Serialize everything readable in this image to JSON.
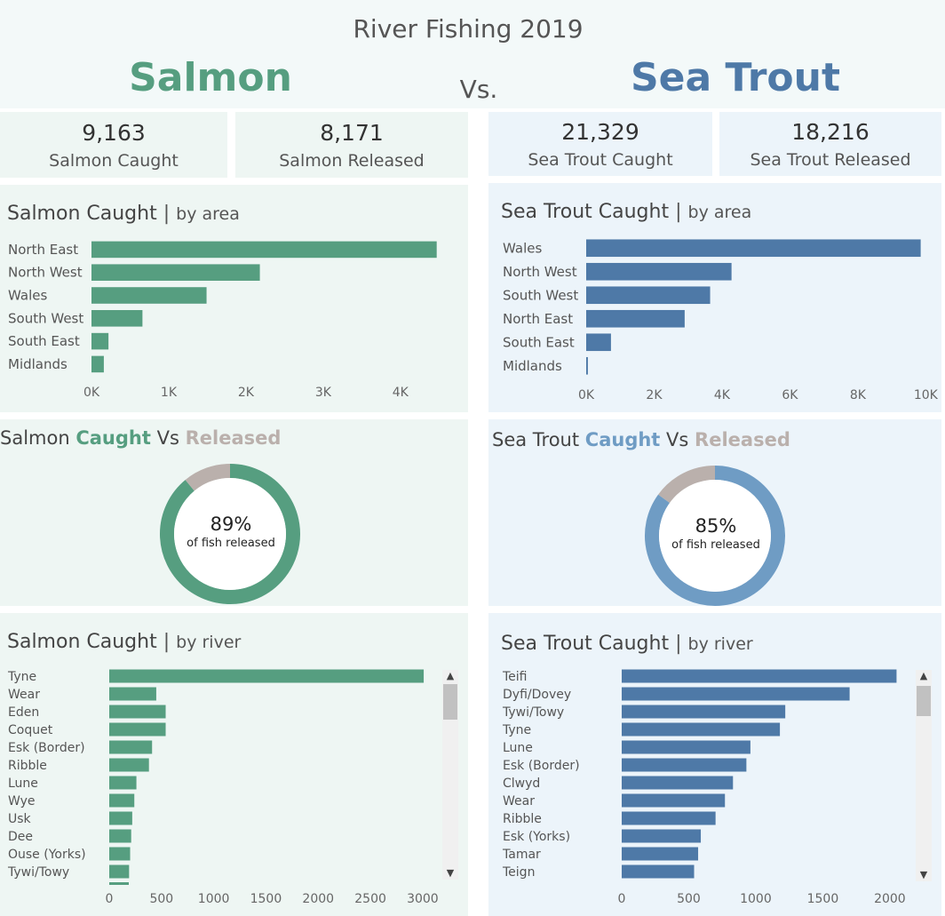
{
  "header": {
    "title": "River Fishing 2019",
    "left_name": "Salmon",
    "vs": "Vs.",
    "right_name": "Sea Trout"
  },
  "colors": {
    "salmon": "#569e80",
    "trout": "#4e79a7",
    "trout_light": "#6f9cc4",
    "released": "#bab0ac"
  },
  "kpis": {
    "salmon_caught": {
      "value": "9,163",
      "label": "Salmon Caught"
    },
    "salmon_released": {
      "value": "8,171",
      "label": "Salmon Released"
    },
    "trout_caught": {
      "value": "21,329",
      "label": "Sea Trout Caught"
    },
    "trout_released": {
      "value": "18,216",
      "label": "Sea Trout Released"
    }
  },
  "salmon_area": {
    "title": "Salmon Caught",
    "sep": "|",
    "subtitle": "by area"
  },
  "trout_area": {
    "title": "Sea Trout Caught",
    "sep": "|",
    "subtitle": "by area"
  },
  "salmon_donut": {
    "title_a": "Salmon",
    "title_b": "Caught",
    "title_c": "Vs",
    "title_d": "Released",
    "percent": "89%",
    "caption": "of fish released"
  },
  "trout_donut": {
    "title_a": "Sea Trout",
    "title_b": "Caught",
    "title_c": "Vs",
    "title_d": "Released",
    "percent": "85%",
    "caption": "of fish released"
  },
  "salmon_river": {
    "title": "Salmon Caught",
    "sep": "|",
    "subtitle": "by river"
  },
  "trout_river": {
    "title": "Sea Trout Caught",
    "sep": "|",
    "subtitle": "by river"
  },
  "chart_data": [
    {
      "id": "salmon-area",
      "type": "bar",
      "orientation": "horizontal",
      "categories": [
        "North East",
        "North West",
        "Wales",
        "South West",
        "South East",
        "Midlands"
      ],
      "values": [
        4470,
        2180,
        1490,
        660,
        220,
        160
      ],
      "xlim": [
        0,
        4600
      ],
      "ticks": [
        0,
        1000,
        2000,
        3000,
        4000
      ],
      "tick_labels": [
        "0K",
        "1K",
        "2K",
        "3K",
        "4K"
      ],
      "color": "#569e80"
    },
    {
      "id": "trout-area",
      "type": "bar",
      "orientation": "horizontal",
      "categories": [
        "Wales",
        "North West",
        "South West",
        "North East",
        "South East",
        "Midlands"
      ],
      "values": [
        9850,
        4280,
        3650,
        2900,
        730,
        50
      ],
      "xlim": [
        0,
        10200
      ],
      "ticks": [
        0,
        2000,
        4000,
        6000,
        8000,
        10000
      ],
      "tick_labels": [
        "0K",
        "2K",
        "4K",
        "6K",
        "8K",
        "10K"
      ],
      "color": "#4e79a7"
    },
    {
      "id": "salmon-donut",
      "type": "pie",
      "categories": [
        "Released",
        "Not released"
      ],
      "values": [
        89,
        11
      ],
      "colors": [
        "#569e80",
        "#bab0ac"
      ]
    },
    {
      "id": "trout-donut",
      "type": "pie",
      "categories": [
        "Released",
        "Not released"
      ],
      "values": [
        85,
        15
      ],
      "colors": [
        "#6f9cc4",
        "#bab0ac"
      ]
    },
    {
      "id": "salmon-river",
      "type": "bar",
      "orientation": "horizontal",
      "categories": [
        "Tyne",
        "Wear",
        "Eden",
        "Coquet",
        "Esk (Border)",
        "Ribble",
        "Lune",
        "Wye",
        "Usk",
        "Dee",
        "Ouse (Yorks)",
        "Tywi/Towy"
      ],
      "values": [
        3010,
        450,
        540,
        540,
        410,
        380,
        260,
        240,
        220,
        210,
        200,
        190
      ],
      "xlim": [
        0,
        3120
      ],
      "ticks": [
        0,
        500,
        1000,
        1500,
        2000,
        2500,
        3000
      ],
      "tick_labels": [
        "0",
        "500",
        "1000",
        "1500",
        "2000",
        "2500",
        "3000"
      ],
      "color": "#569e80"
    },
    {
      "id": "trout-river",
      "type": "bar",
      "orientation": "horizontal",
      "categories": [
        "Teifi",
        "Dyfi/Dovey",
        "Tywi/Towy",
        "Tyne",
        "Lune",
        "Esk (Border)",
        "Clwyd",
        "Wear",
        "Ribble",
        "Esk (Yorks)",
        "Tamar",
        "Teign"
      ],
      "values": [
        2050,
        1700,
        1220,
        1180,
        960,
        930,
        830,
        770,
        700,
        590,
        570,
        540
      ],
      "xlim": [
        0,
        2120
      ],
      "ticks": [
        0,
        500,
        1000,
        1500,
        2000
      ],
      "tick_labels": [
        "0",
        "500",
        "1000",
        "1500",
        "2000"
      ],
      "color": "#4e79a7"
    }
  ]
}
